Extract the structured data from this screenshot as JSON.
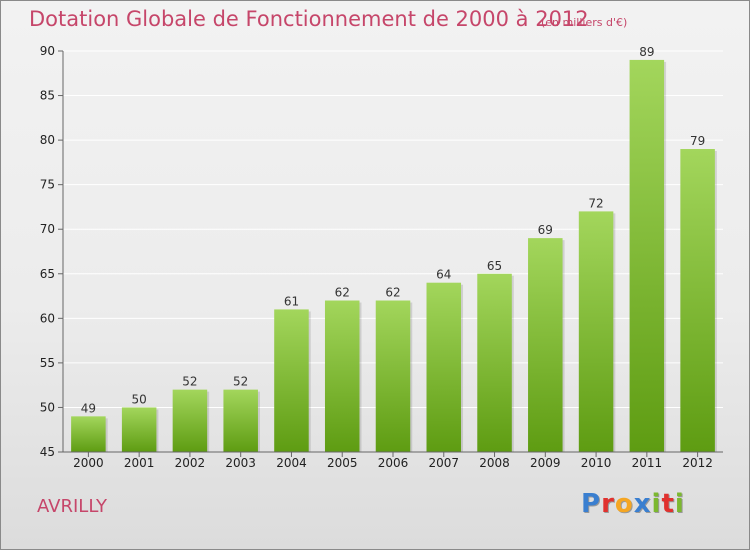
{
  "page": {
    "title": "Dotation Globale de Fonctionnement de 2000 à 2012",
    "unit_note": "(en milliers d'€)",
    "commune": "AVRILLY",
    "logo_letters": [
      "P",
      "r",
      "o",
      "x",
      "i",
      "t",
      "i"
    ],
    "logo_colors": [
      "#3a7fd0",
      "#e0312e",
      "#f5a623",
      "#3a7fd0",
      "#7cb82f",
      "#e0312e",
      "#7cb82f"
    ]
  },
  "colors": {
    "title": "#c6466a",
    "bar_light": "#a3d65c",
    "bar_dark": "#5e9c12",
    "grid": "#ffffff",
    "axis": "#666666"
  },
  "chart_data": {
    "type": "bar",
    "title": "Dotation Globale de Fonctionnement de 2000 à 2012",
    "subtitle": "(en milliers d'€)",
    "xlabel": "",
    "ylabel": "",
    "categories": [
      "2000",
      "2001",
      "2002",
      "2003",
      "2004",
      "2005",
      "2006",
      "2007",
      "2008",
      "2009",
      "2010",
      "2011",
      "2012"
    ],
    "values": [
      49,
      50,
      52,
      52,
      61,
      62,
      62,
      64,
      65,
      69,
      72,
      89,
      79
    ],
    "data_labels": [
      "49",
      "50",
      "52",
      "52",
      "61",
      "62",
      "62",
      "64",
      "65",
      "69",
      "72",
      "89",
      "79"
    ],
    "ylim": [
      45,
      90
    ],
    "yticks": [
      45,
      50,
      55,
      60,
      65,
      70,
      75,
      80,
      85,
      90
    ],
    "grid": true,
    "legend": "none"
  }
}
